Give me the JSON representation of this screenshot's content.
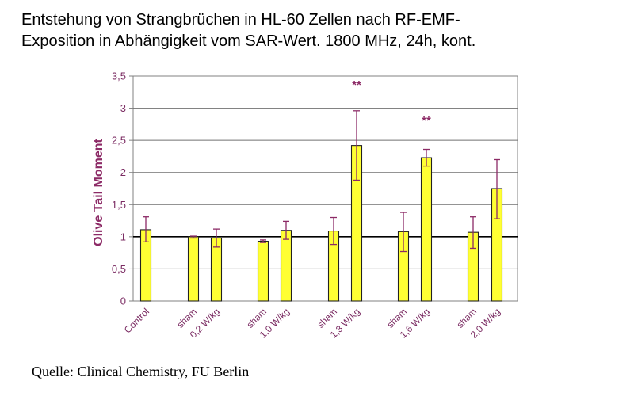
{
  "title_line1": "Entstehung von Strangbrüchen in HL-60 Zellen nach RF-EMF-",
  "title_line2": "Exposition in Abhängigkeit vom SAR-Wert. 1800 MHz, 24h, kont.",
  "source": "Quelle: Clinical Chemistry, FU Berlin",
  "colors": {
    "bar": "#ffff33",
    "bar_stroke": "#222222",
    "errorbar": "#8c2a66",
    "axis_text": "#7b2c63"
  },
  "chart_data": {
    "type": "bar",
    "ylabel": "Olive Tail Moment",
    "ylim": [
      0,
      3.5
    ],
    "yticks": [
      "0",
      "0,5",
      "1",
      "1,5",
      "2",
      "2,5",
      "3",
      "3,5"
    ],
    "grid": true,
    "reference_line": 1,
    "categories": [
      "Control",
      "sham",
      "0,2 W/kg",
      "sham",
      "1,0 W/kg",
      "sham",
      "1,3 W/kg",
      "sham",
      "1,6 W/kg",
      "sham",
      "2,0 W/kg"
    ],
    "values": [
      1.11,
      1.0,
      0.98,
      0.93,
      1.1,
      1.09,
      2.42,
      1.08,
      2.23,
      1.07,
      1.75
    ],
    "error_low": [
      0.92,
      0.98,
      0.84,
      0.91,
      0.96,
      0.88,
      1.88,
      0.77,
      2.1,
      0.82,
      1.28
    ],
    "error_high": [
      1.31,
      1.01,
      1.12,
      0.95,
      1.24,
      1.3,
      2.96,
      1.38,
      2.36,
      1.31,
      2.2
    ],
    "annotations": [
      {
        "text": "**",
        "category_index": 6,
        "y": 3.3
      },
      {
        "text": "**",
        "category_index": 8,
        "y": 2.75
      }
    ]
  }
}
